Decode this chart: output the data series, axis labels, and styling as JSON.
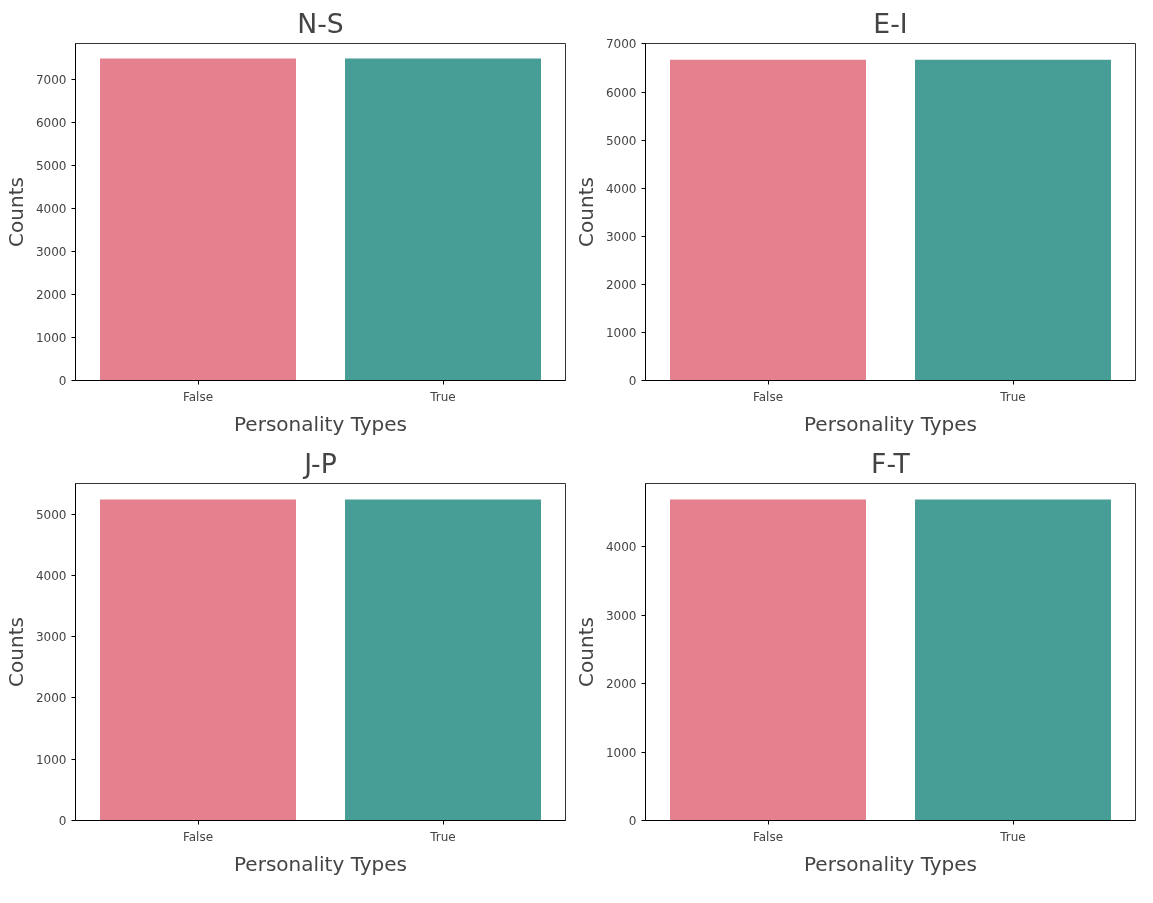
{
  "chart_data": [
    {
      "type": "bar",
      "title": "N-S",
      "xlabel": "Personality Types",
      "ylabel": "Counts",
      "categories": [
        "False",
        "True"
      ],
      "values": [
        7480,
        7480
      ],
      "colors": [
        "#e5808f",
        "#469e96"
      ],
      "ylim": [
        0,
        7830
      ],
      "yticks": [
        0,
        1000,
        2000,
        3000,
        4000,
        5000,
        6000,
        7000
      ],
      "grid": false
    },
    {
      "type": "bar",
      "title": "E-I",
      "xlabel": "Personality Types",
      "ylabel": "Counts",
      "categories": [
        "False",
        "True"
      ],
      "values": [
        6670,
        6670
      ],
      "colors": [
        "#e5808f",
        "#469e96"
      ],
      "ylim": [
        0,
        7010
      ],
      "yticks": [
        0,
        1000,
        2000,
        3000,
        4000,
        5000,
        6000,
        7000
      ],
      "grid": false
    },
    {
      "type": "bar",
      "title": "J-P",
      "xlabel": "Personality Types",
      "ylabel": "Counts",
      "categories": [
        "False",
        "True"
      ],
      "values": [
        5240,
        5240
      ],
      "colors": [
        "#e5808f",
        "#469e96"
      ],
      "ylim": [
        0,
        5500
      ],
      "yticks": [
        0,
        1000,
        2000,
        3000,
        4000,
        5000
      ],
      "grid": false
    },
    {
      "type": "bar",
      "title": "F-T",
      "xlabel": "Personality Types",
      "ylabel": "Counts",
      "categories": [
        "False",
        "True"
      ],
      "values": [
        4690,
        4690
      ],
      "colors": [
        "#e5808f",
        "#469e96"
      ],
      "ylim": [
        0,
        4925
      ],
      "yticks": [
        0,
        1000,
        2000,
        3000,
        4000
      ],
      "grid": false
    }
  ]
}
